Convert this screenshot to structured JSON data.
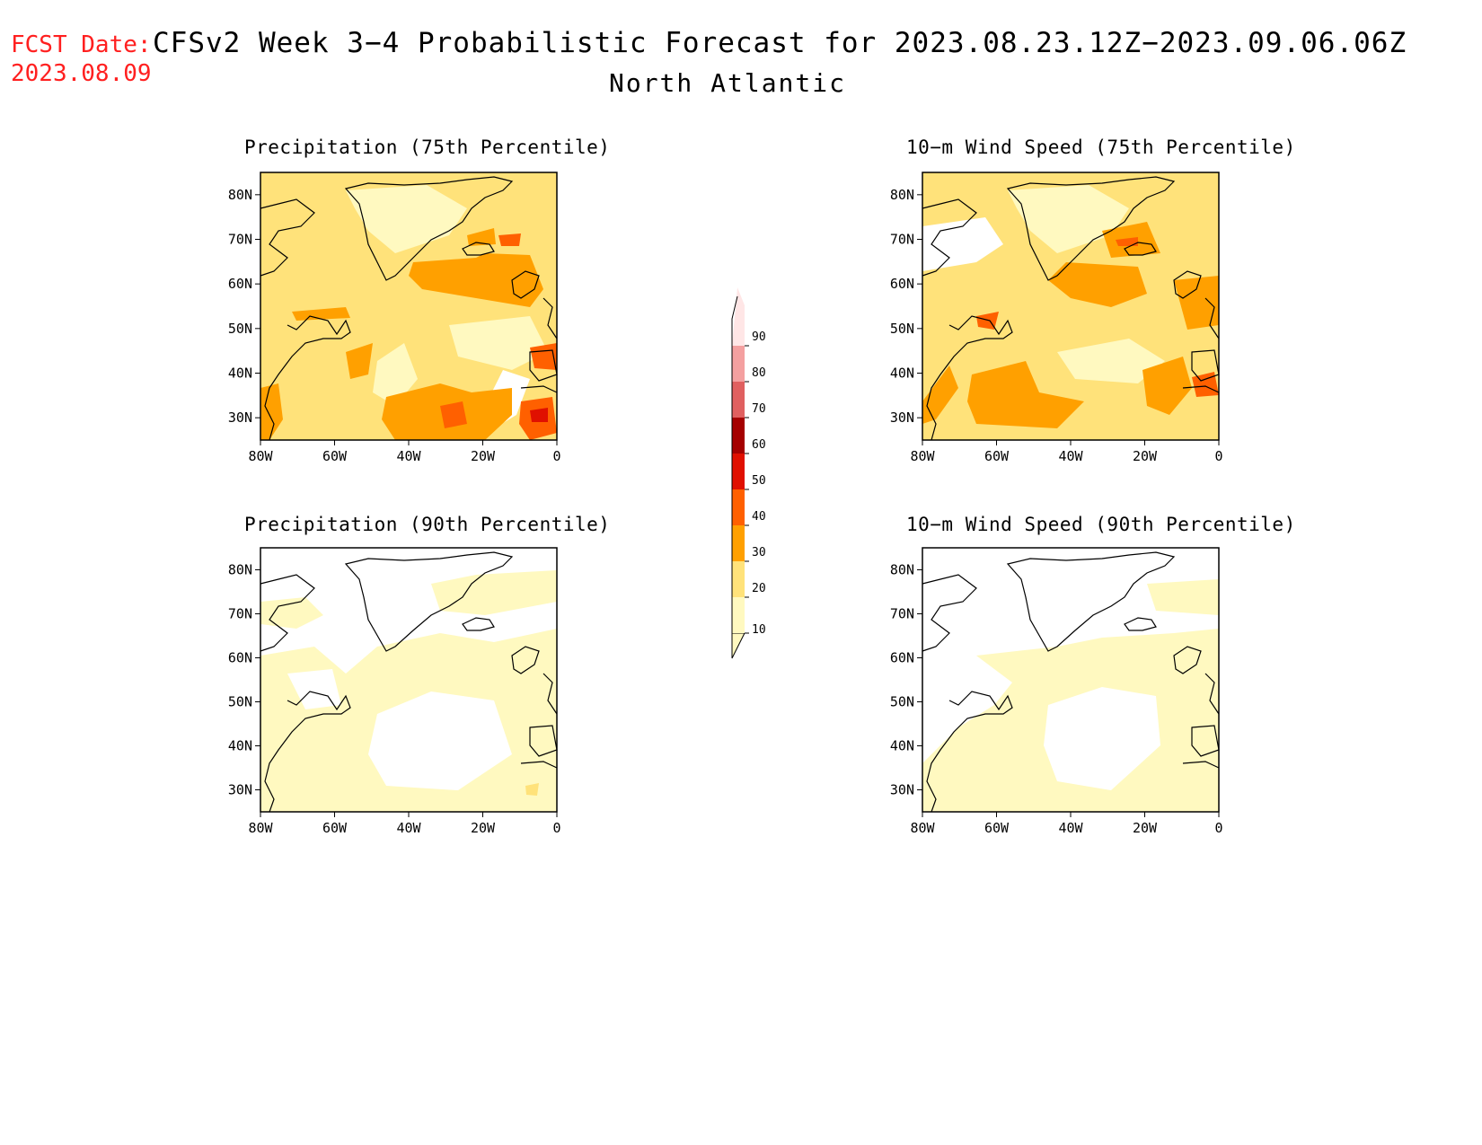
{
  "header": {
    "fcst_label": "FCST Date:",
    "fcst_date": "2023.08.09",
    "title": "CFSv2 Week 3−4 Probabilistic Forecast for 2023.08.23.12Z−2023.09.06.06Z",
    "region": "North Atlantic"
  },
  "axes": {
    "lon_labels": [
      "80W",
      "60W",
      "40W",
      "20W",
      "0"
    ],
    "lat_labels": [
      "80N",
      "70N",
      "60N",
      "50N",
      "40N",
      "30N"
    ],
    "lon_range": [
      -80,
      0
    ],
    "lat_range": [
      25,
      85
    ]
  },
  "panels": [
    {
      "title": "Precipitation (75th Percentile)",
      "typical_level": 20
    },
    {
      "title": "10−m Wind Speed (75th Percentile)",
      "typical_level": 20
    },
    {
      "title": "Precipitation (90th Percentile)",
      "typical_level": 0
    },
    {
      "title": "10−m Wind Speed (90th Percentile)",
      "typical_level": 0
    }
  ],
  "colorbar": {
    "levels": [
      "10",
      "20",
      "30",
      "40",
      "50",
      "60",
      "70",
      "80",
      "90"
    ],
    "colors": [
      "#fff9c0",
      "#ffe27a",
      "#ffa000",
      "#ff6000",
      "#e01000",
      "#a50000",
      "#e06060",
      "#f4a0a0",
      "#ffe6e6"
    ]
  }
}
